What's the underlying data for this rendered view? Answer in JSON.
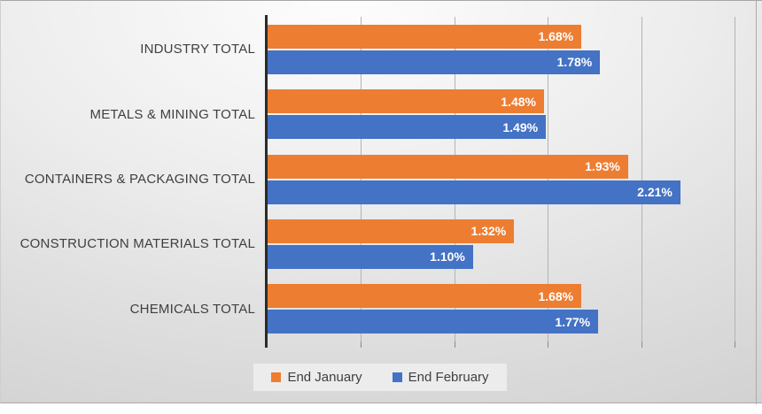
{
  "chart_data": {
    "type": "bar",
    "orientation": "horizontal",
    "title": "",
    "xlabel": "",
    "ylabel": "",
    "categories": [
      "INDUSTRY TOTAL",
      "METALS & MINING TOTAL",
      "CONTAINERS & PACKAGING TOTAL",
      "CONSTRUCTION MATERIALS TOTAL",
      "CHEMICALS TOTAL"
    ],
    "series": [
      {
        "name": "End January",
        "color": "#ED7D31",
        "values": [
          1.68,
          1.48,
          1.93,
          1.32,
          1.68
        ],
        "labels": [
          "1.68%",
          "1.48%",
          "1.93%",
          "1.32%",
          "1.68%"
        ]
      },
      {
        "name": "End February",
        "color": "#4472C4",
        "values": [
          1.78,
          1.49,
          2.21,
          1.1,
          1.77
        ],
        "labels": [
          "1.78%",
          "1.49%",
          "2.21%",
          "1.10%",
          "1.77%"
        ]
      }
    ],
    "xlim": [
      0,
      2.5
    ],
    "gridline_interval": 0.5,
    "grid": true,
    "data_labels": "inside-end",
    "legend_position": "bottom"
  },
  "legend": {
    "items": [
      {
        "label": "End January",
        "color": "#ED7D31"
      },
      {
        "label": "End February",
        "color": "#4472C4"
      }
    ]
  },
  "style": {
    "axis_line_color": "#2b2b2b",
    "gridline_color": "#b3b3b3",
    "category_text_color": "#3f3f3f",
    "data_label_color": "#ffffff",
    "legend_background": "#ececec"
  }
}
